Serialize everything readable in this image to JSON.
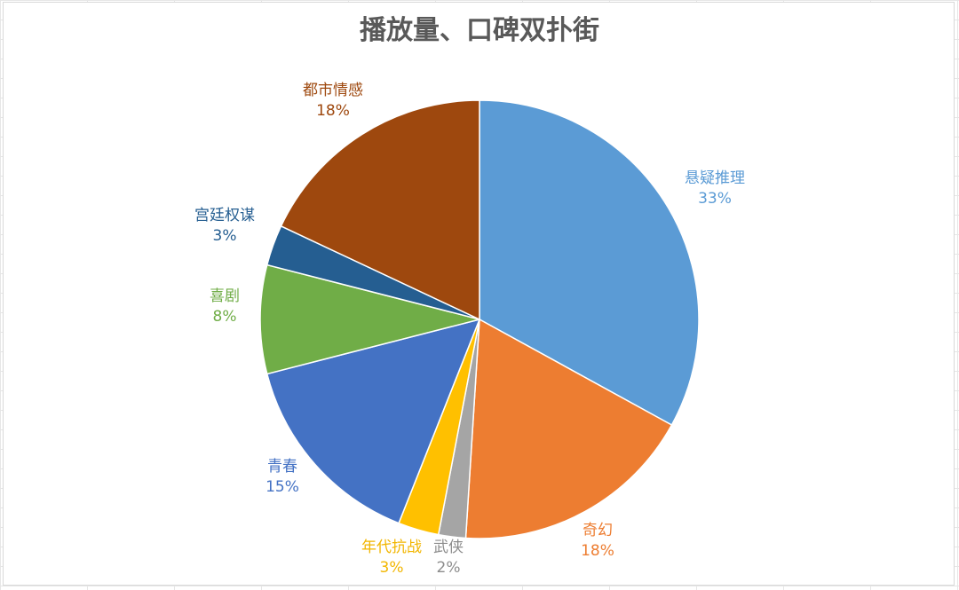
{
  "chart_data": {
    "type": "pie",
    "title": "播放量、口碑双扑街",
    "start_angle_deg": 0,
    "direction": "clockwise",
    "slices": [
      {
        "label": "悬疑推理",
        "value": 33,
        "value_label": "33%",
        "color": "#5B9BD5"
      },
      {
        "label": "奇幻",
        "value": 18,
        "value_label": "18%",
        "color": "#ED7D31"
      },
      {
        "label": "武侠",
        "value": 2,
        "value_label": "2%",
        "color": "#A5A5A5"
      },
      {
        "label": "年代抗战",
        "value": 3,
        "value_label": "3%",
        "color": "#FFC000"
      },
      {
        "label": "青春",
        "value": 15,
        "value_label": "15%",
        "color": "#4472C4"
      },
      {
        "label": "喜剧",
        "value": 8,
        "value_label": "8%",
        "color": "#70AD47"
      },
      {
        "label": "宫廷权谋",
        "value": 3,
        "value_label": "3%",
        "color": "#255E91"
      },
      {
        "label": "都市情感",
        "value": 18,
        "value_label": "18%",
        "color": "#9E480E"
      }
    ]
  }
}
